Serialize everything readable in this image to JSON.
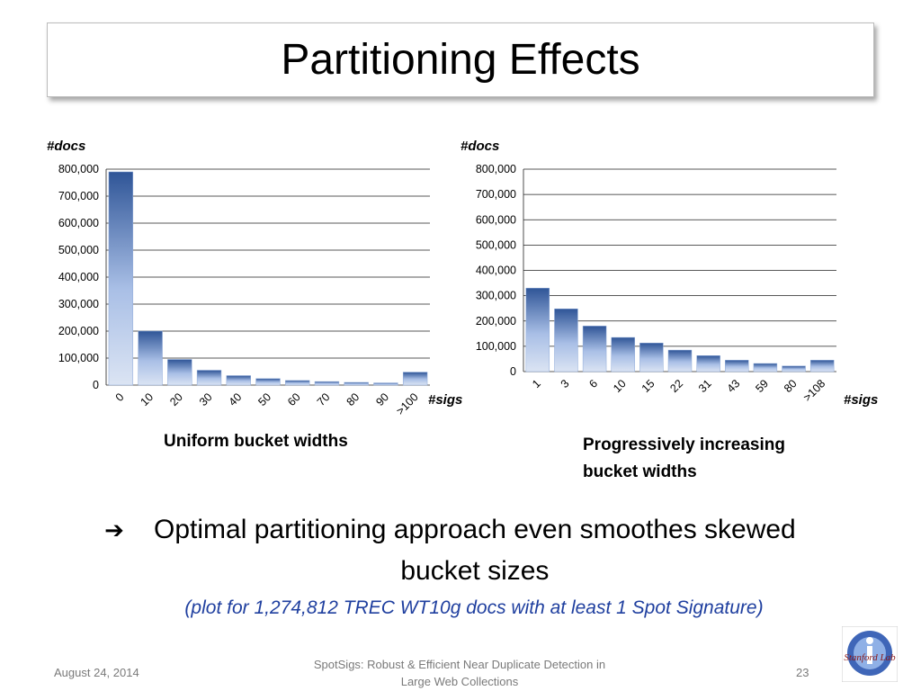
{
  "slide": {
    "title": "Partitioning Effects",
    "conclusion_arrow": "➔",
    "conclusion": "Optimal partitioning approach even smoothes skewed bucket sizes",
    "note": "(plot for 1,274,812 TREC WT10g docs with at least 1 Spot Signature)",
    "footer_date": "August 24, 2014",
    "footer_title": "SpotSigs: Robust & Efficient Near Duplicate Detection in Large Web Collections",
    "page_number": "23",
    "logo_text": "Stanford Lab"
  },
  "colors": {
    "bar_top": "#2f5597",
    "bar_bottom": "#dbe4f3",
    "grid": "#000000",
    "note": "#1f3f9f"
  },
  "chart_data": [
    {
      "type": "bar",
      "ylabel": "#docs",
      "xlabel": "#sigs",
      "caption": "Uniform bucket widths",
      "categories": [
        "0",
        "10",
        "20",
        "30",
        "40",
        "50",
        "60",
        "70",
        "80",
        "90",
        ">100"
      ],
      "values": [
        790000,
        200000,
        95000,
        55000,
        35000,
        24000,
        17000,
        13000,
        10000,
        8000,
        48000
      ],
      "ylim": [
        0,
        800000
      ],
      "yticks": [
        "0",
        "100,000",
        "200,000",
        "300,000",
        "400,000",
        "500,000",
        "600,000",
        "700,000",
        "800,000"
      ],
      "grid": true
    },
    {
      "type": "bar",
      "ylabel": "#docs",
      "xlabel": "#sigs",
      "caption": "Progressively increasing bucket widths",
      "categories": [
        "1",
        "3",
        "6",
        "10",
        "15",
        "22",
        "31",
        "43",
        "59",
        "80",
        ">108"
      ],
      "values": [
        330000,
        248000,
        180000,
        135000,
        113000,
        85000,
        63000,
        45000,
        32000,
        22000,
        45000
      ],
      "ylim": [
        0,
        800000
      ],
      "yticks": [
        "0",
        "100,000",
        "200,000",
        "300,000",
        "400,000",
        "500,000",
        "600,000",
        "700,000",
        "800,000"
      ],
      "grid": true
    }
  ]
}
